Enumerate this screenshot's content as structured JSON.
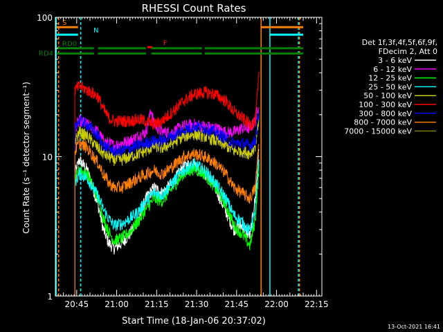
{
  "chart_data": {
    "type": "line",
    "title": "RHESSI Count Rates",
    "xlabel": "Start Time (18-Jan-06 20:37:02)",
    "ylabel": "Count Rate (s⁻¹ detector segment⁻¹)",
    "y_scale": "log",
    "ylim": [
      1,
      100
    ],
    "xlim_minutes_after_20_37_02": [
      0,
      100
    ],
    "x_ticks": [
      {
        "label": "20:45",
        "t": 8
      },
      {
        "label": "21:00",
        "t": 23
      },
      {
        "label": "21:15",
        "t": 38
      },
      {
        "label": "21:30",
        "t": 53
      },
      {
        "label": "21:45",
        "t": 68
      },
      {
        "label": "22:00",
        "t": 83
      },
      {
        "label": "22:15",
        "t": 98
      }
    ],
    "y_ticks": [
      {
        "label": "1",
        "v": 1
      },
      {
        "label": "10",
        "v": 10
      },
      {
        "label": "100",
        "v": 100
      }
    ],
    "legend_header": [
      "Det 1f,3f,4f,5f,6f,9f,",
      "FDecim 2, Att 0"
    ],
    "legend_placement": "right",
    "series": [
      {
        "name": "3 - 6 keV",
        "color": "#ffffff",
        "base": 7.0,
        "x": [
          7.3,
          9,
          12,
          16,
          18,
          20,
          22,
          25,
          28,
          31,
          34,
          37,
          40,
          44,
          48,
          52,
          56,
          60,
          64,
          67,
          70,
          73,
          75,
          76.5
        ],
        "y": [
          7.5,
          9.5,
          8.0,
          4.5,
          3.0,
          2.4,
          2.2,
          2.4,
          2.8,
          3.5,
          5.0,
          6.0,
          5.5,
          6.5,
          8.5,
          9.0,
          7.5,
          6.0,
          4.0,
          3.0,
          3.2,
          2.7,
          5.0,
          12.0
        ]
      },
      {
        "name": "6 - 12 keV",
        "color": "#ff00ff",
        "x": [
          7.3,
          9,
          12,
          16,
          18,
          20,
          22,
          25,
          28,
          31,
          34,
          35,
          36,
          37,
          40,
          44,
          48,
          52,
          56,
          60,
          64,
          67,
          70,
          73,
          75,
          76.5
        ],
        "y": [
          16,
          18,
          17,
          15,
          13,
          12.5,
          12,
          12.5,
          13,
          14,
          15,
          18,
          22,
          17,
          15,
          15,
          16.5,
          17,
          16.5,
          16,
          15,
          15,
          16,
          16,
          18,
          25
        ]
      },
      {
        "name": "12 - 25 keV",
        "color": "#00ff00",
        "x": [
          7.3,
          9,
          12,
          16,
          18,
          20,
          22,
          25,
          28,
          31,
          34,
          37,
          40,
          44,
          48,
          52,
          56,
          60,
          64,
          67,
          70,
          73,
          75,
          76.5
        ],
        "y": [
          7.0,
          8.0,
          7.5,
          5.0,
          3.6,
          2.9,
          2.5,
          2.6,
          2.9,
          3.4,
          4.2,
          5.0,
          4.8,
          6.0,
          7.5,
          8.2,
          7.5,
          6.0,
          4.5,
          3.2,
          2.8,
          2.3,
          3.5,
          9.0
        ]
      },
      {
        "name": "25 - 50 keV",
        "color": "#00ffff",
        "x": [
          7.3,
          9,
          12,
          16,
          18,
          20,
          22,
          25,
          28,
          31,
          34,
          37,
          40,
          44,
          48,
          52,
          56,
          60,
          64,
          67,
          70,
          73,
          75,
          76.5
        ],
        "y": [
          6.5,
          7.5,
          7.0,
          5.2,
          4.2,
          3.6,
          3.2,
          3.3,
          3.6,
          4.0,
          4.8,
          5.5,
          5.3,
          6.5,
          8.0,
          8.8,
          8.0,
          6.5,
          5.0,
          3.8,
          3.4,
          2.9,
          4.0,
          10.0
        ]
      },
      {
        "name": "50 - 100 keV",
        "color": "#cccc00",
        "x": [
          7.3,
          9,
          12,
          16,
          18,
          20,
          22,
          25,
          28,
          31,
          34,
          37,
          40,
          44,
          48,
          52,
          56,
          60,
          64,
          67,
          70,
          73,
          75,
          76.5
        ],
        "y": [
          13,
          15,
          14,
          11.5,
          10.5,
          10,
          9.5,
          9.5,
          10,
          10.5,
          11,
          12,
          11.5,
          12.5,
          14,
          14.5,
          14,
          13,
          12,
          11,
          11,
          10.5,
          12,
          20
        ]
      },
      {
        "name": "100 - 300 keV",
        "color": "#ff0000",
        "x": [
          7.3,
          9,
          12,
          16,
          18,
          20,
          22,
          25,
          28,
          31,
          34,
          37,
          40,
          44,
          48,
          52,
          56,
          60,
          64,
          67,
          70,
          73,
          75,
          76.5
        ],
        "y": [
          30,
          32,
          30,
          27,
          22,
          19,
          18,
          18,
          18,
          18.5,
          18,
          17,
          18,
          21,
          25,
          28,
          29,
          28,
          25,
          21,
          19,
          17,
          18,
          40
        ]
      },
      {
        "name": "300 - 800 keV",
        "color": "#0000ff",
        "x": [
          7.3,
          9,
          12,
          16,
          18,
          20,
          22,
          25,
          28,
          31,
          34,
          37,
          40,
          44,
          48,
          52,
          56,
          60,
          64,
          67,
          70,
          73,
          75,
          76.5
        ],
        "y": [
          17,
          18,
          17,
          14,
          12,
          11.5,
          11,
          11,
          11.5,
          12,
          12.5,
          13,
          13,
          14,
          15.5,
          16.5,
          16,
          15,
          13.5,
          12.5,
          12.5,
          12,
          13,
          22
        ]
      },
      {
        "name": "800 - 7000 keV",
        "color": "#ff8000",
        "x": [
          7.3,
          9,
          12,
          16,
          18,
          20,
          22,
          25,
          28,
          31,
          34,
          37,
          40,
          44,
          48,
          52,
          56,
          60,
          64,
          67,
          70,
          73,
          75,
          76.5
        ],
        "y": [
          11,
          12.5,
          11.5,
          9.0,
          7.5,
          6.5,
          6.0,
          6.0,
          6.5,
          7.0,
          7.5,
          8.0,
          7.5,
          8.5,
          10,
          10.5,
          10,
          9.0,
          7.5,
          6.0,
          5.5,
          5.0,
          6.0,
          14
        ]
      },
      {
        "name": "7000 - 15000 keV",
        "color": "#808000",
        "x": [],
        "y": []
      }
    ],
    "flags": [
      {
        "label": "S",
        "color": "#ff8000",
        "y_value": 85,
        "segments": [
          [
            0.5,
            8.5
          ],
          [
            77,
            93
          ]
        ]
      },
      {
        "label": "N",
        "color": "#00ffff",
        "y_value": 75,
        "segments": [
          [
            0.5,
            8.5
          ],
          [
            80.5,
            93
          ]
        ]
      },
      {
        "label": "F",
        "color": "#ff0000",
        "y_value": 61,
        "segments": [
          [
            34.5,
            36.5
          ]
        ]
      },
      {
        "label": "RD0",
        "color": "#008000",
        "y_value": 60,
        "segments": [
          [
            0.5,
            14.5
          ],
          [
            16,
            34
          ],
          [
            36,
            55
          ],
          [
            56,
            93
          ]
        ]
      },
      {
        "label": "RD4",
        "color": "#008000",
        "y_value": 55,
        "segments": [
          [
            0.5,
            14.5
          ],
          [
            16,
            34
          ],
          [
            36,
            55
          ],
          [
            56,
            93
          ]
        ]
      }
    ],
    "vertical_markers": [
      {
        "t": 0.3,
        "color": "#00ffff",
        "style": "solid"
      },
      {
        "t": 1.2,
        "color": "#ff8000",
        "style": "dashed"
      },
      {
        "t": 9.5,
        "color": "#00ffff",
        "style": "dashed"
      },
      {
        "t": 77.2,
        "color": "#ff8000",
        "style": "solid"
      },
      {
        "t": 80.5,
        "color": "#00ffff",
        "style": "solid"
      },
      {
        "t": 91.2,
        "color": "#00ffff",
        "style": "dashed"
      },
      {
        "t": 91.6,
        "color": "#ff8000",
        "style": "dashed"
      }
    ]
  },
  "footer": {
    "timestamp": "13-Oct-2021 16:41"
  }
}
